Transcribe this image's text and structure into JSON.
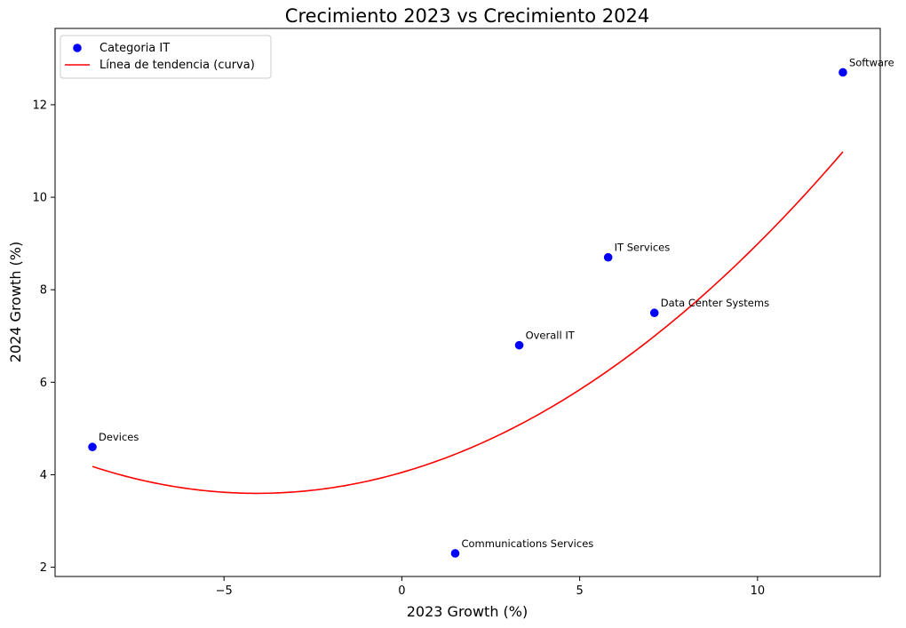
{
  "chart_data": {
    "type": "scatter",
    "title": "Crecimiento 2023 vs Crecimiento 2024",
    "xlabel": "2023 Growth (%)",
    "ylabel": "2024 Growth (%)",
    "xlim": [
      -9.75,
      13.45
    ],
    "ylim": [
      1.8,
      13.65
    ],
    "xticks": [
      -5,
      0,
      5,
      10
    ],
    "xtick_labels": [
      "−5",
      "0",
      "5",
      "10"
    ],
    "yticks": [
      2,
      4,
      6,
      8,
      10,
      12
    ],
    "ytick_labels": [
      "2",
      "4",
      "6",
      "8",
      "10",
      "12"
    ],
    "grid": false,
    "legend_position": "top-left",
    "series": [
      {
        "name": "Categoria IT",
        "kind": "scatter",
        "color": "#0000ff",
        "points": [
          {
            "label": "Devices",
            "x": -8.7,
            "y": 4.6
          },
          {
            "label": "Communications Services",
            "x": 1.5,
            "y": 2.3
          },
          {
            "label": "Overall IT",
            "x": 3.3,
            "y": 6.8
          },
          {
            "label": "IT Services",
            "x": 5.8,
            "y": 8.7
          },
          {
            "label": "Data Center Systems",
            "x": 7.1,
            "y": 7.5
          },
          {
            "label": "Software",
            "x": 12.4,
            "y": 12.7
          }
        ]
      },
      {
        "name": "Línea de tendencia (curva)",
        "kind": "line",
        "color": "#ff0000",
        "x_range": [
          -8.7,
          12.4
        ],
        "polynomial": [
          0.0272,
          0.2218,
          4.0499
        ]
      }
    ]
  }
}
